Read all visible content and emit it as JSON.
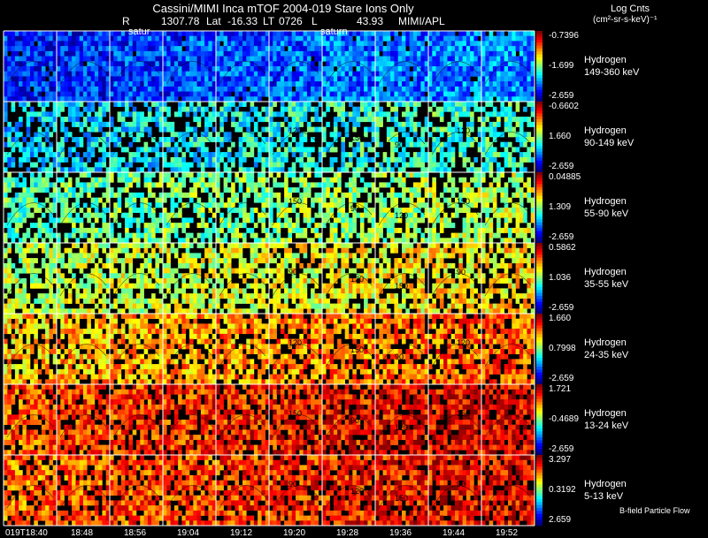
{
  "header": {
    "title": "Cassini/MIMI Inca mTOF  2004-019   Stare   Ions Only",
    "r_label": "R",
    "r_value": "1307.78",
    "lat_label": "Lat",
    "lat_value": "-16.33",
    "lt_label": "LT",
    "lt_value": "0726",
    "l_label": "L",
    "l_value": "43.93",
    "instrument": "MIMI/APL",
    "planet_labels": [
      "satur",
      "saturn"
    ]
  },
  "colorbar_title": {
    "line1": "Log Cnts",
    "line2": "(cm²-sr-s-keV)⁻¹"
  },
  "chart_data": {
    "type": "heatmap",
    "title": "Cassini/MIMI Inca mTOF  2004-019   Stare   Ions Only",
    "time_labels": [
      "019T18:40",
      "18:48",
      "18:56",
      "19:04",
      "19:12",
      "19:20",
      "19:28",
      "19:36",
      "19:44",
      "19:52"
    ],
    "columns": 10,
    "contour_labels": [
      "90",
      "120",
      "150"
    ],
    "rows": [
      {
        "species": "Hydrogen",
        "energy": "149-360 keV",
        "cb_max": "-0.7396",
        "cb_mid": "-1.699",
        "cb_min": "-2.659",
        "mean_level": 0.15
      },
      {
        "species": "Hydrogen",
        "energy": "90-149 keV",
        "cb_max": "-0.6602",
        "cb_mid": "1.660",
        "cb_min": "-2.659",
        "mean_level": 0.33
      },
      {
        "species": "Hydrogen",
        "energy": "55-90 keV",
        "cb_max": "0.04885",
        "cb_mid": "1.309",
        "cb_min": "-2.659",
        "mean_level": 0.45
      },
      {
        "species": "Hydrogen",
        "energy": "35-55 keV",
        "cb_max": "0.5862",
        "cb_mid": "1.036",
        "cb_min": "-2.659",
        "mean_level": 0.55
      },
      {
        "species": "Hydrogen",
        "energy": "24-35 keV",
        "cb_max": "1.660",
        "cb_mid": "0.7998",
        "cb_min": "-2.659",
        "mean_level": 0.68
      },
      {
        "species": "Hydrogen",
        "energy": "13-24 keV",
        "cb_max": "1.721",
        "cb_mid": "-0.4689",
        "cb_min": "-2.659",
        "mean_level": 0.8
      },
      {
        "species": "Hydrogen",
        "energy": "5-13 keV",
        "cb_max": "3.297",
        "cb_mid": "0.3192",
        "cb_min": "2.659",
        "mean_level": 0.78
      }
    ]
  },
  "footnote": "B-field Particle Flow"
}
